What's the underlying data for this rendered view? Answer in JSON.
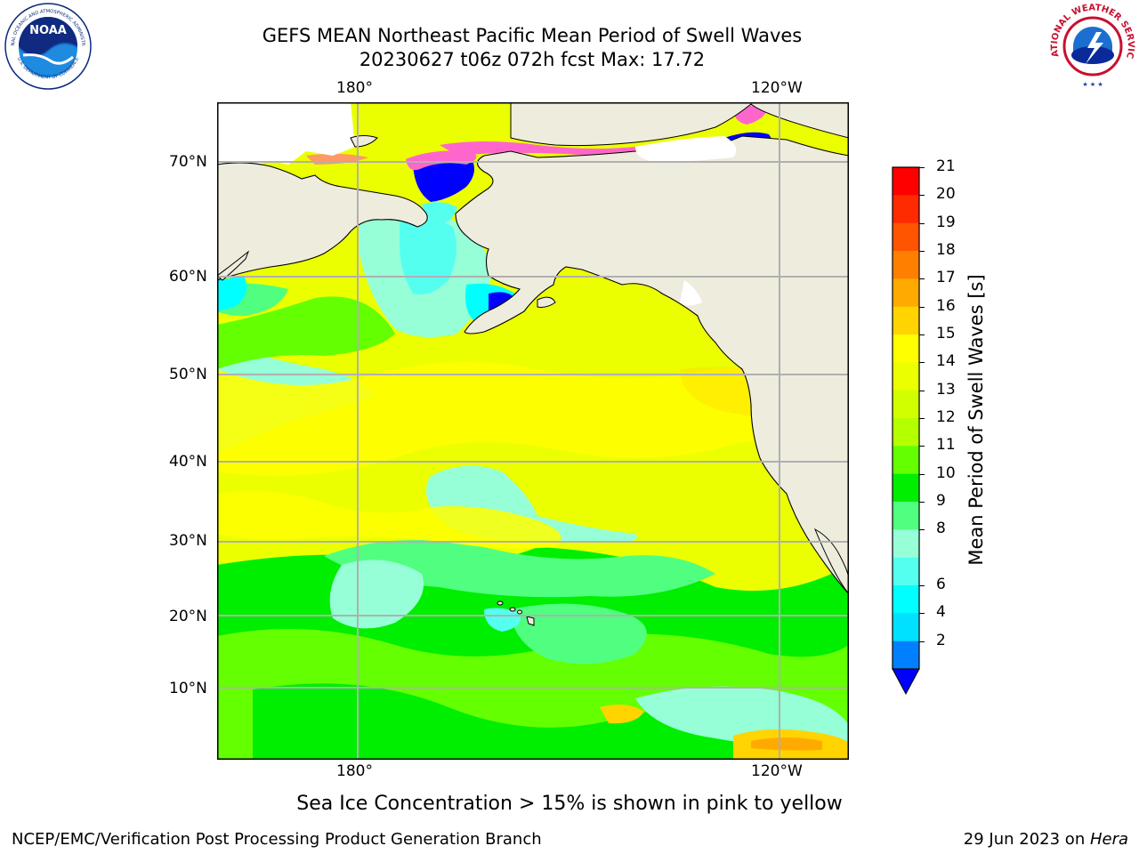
{
  "header": {
    "title_line1": "GEFS MEAN Northeast Pacific Mean Period of Swell Waves",
    "title_line2": "20230627 t06z 072h fcst   Max: 17.72"
  },
  "logos": {
    "noaa": {
      "icon": "noaa-logo",
      "center_text": "NOAA",
      "ring_top": "NATIONAL OCEANIC AND ATMOSPHERIC ADMINISTRATION",
      "ring_bottom": "U.S. DEPARTMENT OF COMMERCE"
    },
    "nws": {
      "icon": "nws-logo",
      "ring_text": "NATIONAL WEATHER SERVICE"
    }
  },
  "map": {
    "lat_labels": [
      "70°N",
      "60°N",
      "50°N",
      "40°N",
      "30°N",
      "20°N",
      "10°N"
    ],
    "lon_labels_top": [
      "180°",
      "120°W"
    ],
    "lon_labels_bottom": [
      "180°",
      "120°W"
    ],
    "colors": {
      "land": "#eeecdc",
      "grid": "#b0b0b0",
      "coast": "#000000"
    }
  },
  "colorbar": {
    "label": "Mean Period of Swell Waves [s]",
    "ticks": [
      "21",
      "20",
      "19",
      "18",
      "17",
      "16",
      "15",
      "14",
      "13",
      "12",
      "11",
      "10",
      "9",
      "8",
      "6",
      "4",
      "2"
    ],
    "colors_top_to_bottom": [
      "#ff0000",
      "#ff2a00",
      "#ff5500",
      "#ff8000",
      "#ffaa00",
      "#ffd400",
      "#ffff00",
      "#ebff00",
      "#d2ff00",
      "#b4ff00",
      "#64ff00",
      "#00ee00",
      "#50ff80",
      "#96ffd8",
      "#55fff0",
      "#00ffff",
      "#00e0ff",
      "#0080ff"
    ],
    "extend_color": "#0000ff"
  },
  "caption": "Sea Ice Concentration > 15% is shown in pink to yellow",
  "footer": {
    "left": "NCEP/EMC/Verification Post Processing Product Generation Branch",
    "right_prefix": "29 Jun 2023 on ",
    "right_host": "Hera"
  }
}
